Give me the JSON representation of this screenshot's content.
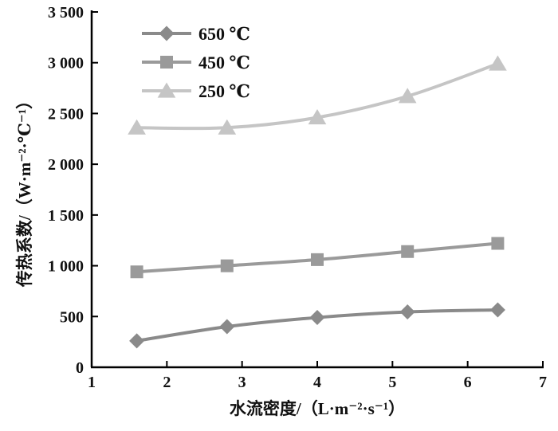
{
  "chart_data": {
    "type": "line",
    "x": [
      1.6,
      2.8,
      4.0,
      5.2,
      6.4
    ],
    "series": [
      {
        "name": "650 ℃",
        "marker": "diamond",
        "color": "#8a8a8a",
        "values": [
          260,
          400,
          490,
          545,
          565
        ]
      },
      {
        "name": "450 ℃",
        "marker": "square",
        "color": "#9a9a9a",
        "values": [
          940,
          1000,
          1060,
          1140,
          1220
        ]
      },
      {
        "name": "250 ℃",
        "marker": "triangle",
        "color": "#c5c5c5",
        "values": [
          2360,
          2360,
          2460,
          2670,
          2990
        ]
      }
    ],
    "xlabel": "水流密度/（L·m⁻²·s⁻¹）",
    "ylabel": "传热系数/（W·m⁻²·℃⁻¹）",
    "xlim": [
      1,
      7
    ],
    "ylim": [
      0,
      3500
    ],
    "xticks": [
      1,
      2,
      3,
      4,
      5,
      6,
      7
    ],
    "xtick_labels": [
      "1",
      "2",
      "3",
      "4",
      "5",
      "6",
      "7"
    ],
    "yticks": [
      0,
      500,
      1000,
      1500,
      2000,
      2500,
      3000,
      3500
    ],
    "ytick_labels": [
      "0",
      "500",
      "1 000",
      "1 500",
      "2 000",
      "2 500",
      "3 000",
      "3 500"
    ],
    "grid": false,
    "legend_position": "top-left",
    "axis_color": "#000000"
  }
}
